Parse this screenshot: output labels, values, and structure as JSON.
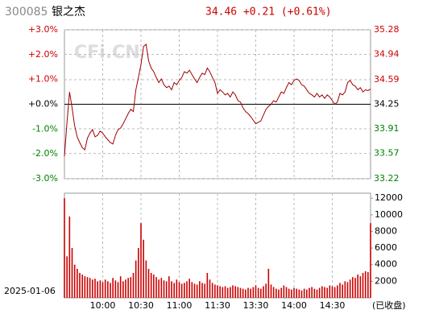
{
  "header": {
    "code": "300085",
    "name": "银之杰",
    "quote": "34.46 +0.21 (+0.61%)"
  },
  "watermark": "CFi.CN",
  "date": "2025-01-06",
  "status": "(已收盘)",
  "chart_data": [
    {
      "type": "line",
      "x": [
        0,
        2,
        4,
        6,
        8,
        10,
        12,
        14,
        16,
        18,
        20,
        22,
        24,
        26,
        28,
        30,
        32,
        34,
        36,
        38,
        40,
        42,
        44,
        46,
        48,
        50,
        52,
        54,
        56,
        58,
        60,
        62,
        64,
        66,
        68,
        70,
        72,
        74,
        76,
        78,
        80,
        82,
        84,
        86,
        88,
        90,
        92,
        94,
        96,
        98,
        100,
        102,
        104,
        106,
        108,
        110,
        112,
        114,
        116,
        118,
        120,
        122,
        124,
        126,
        128,
        130,
        132,
        134,
        136,
        138,
        140,
        142,
        144,
        146,
        148,
        150,
        152,
        154,
        156,
        158,
        160,
        162,
        164,
        166,
        168,
        170,
        172,
        174,
        176,
        178,
        180,
        182,
        184,
        186,
        188,
        190,
        192,
        194,
        196,
        198,
        200,
        202,
        204,
        206,
        208,
        210,
        212,
        214,
        216,
        218,
        220,
        222,
        224,
        226,
        228,
        230,
        232,
        234,
        236,
        238,
        240
      ],
      "values": [
        33.53,
        34.0,
        34.42,
        34.2,
        33.95,
        33.8,
        33.72,
        33.65,
        33.62,
        33.78,
        33.85,
        33.9,
        33.8,
        33.82,
        33.88,
        33.85,
        33.8,
        33.76,
        33.72,
        33.7,
        33.82,
        33.9,
        33.92,
        33.98,
        34.05,
        34.12,
        34.18,
        34.15,
        34.45,
        34.62,
        34.8,
        35.05,
        35.08,
        34.85,
        34.75,
        34.7,
        34.62,
        34.55,
        34.6,
        34.52,
        34.48,
        34.5,
        34.45,
        34.55,
        34.52,
        34.58,
        34.62,
        34.7,
        34.68,
        34.72,
        34.66,
        34.6,
        34.55,
        34.62,
        34.68,
        34.66,
        34.75,
        34.7,
        34.62,
        34.55,
        34.4,
        34.45,
        34.42,
        34.38,
        34.4,
        34.35,
        34.42,
        34.38,
        34.3,
        34.28,
        34.2,
        34.15,
        34.12,
        34.08,
        34.03,
        33.98,
        34.0,
        34.02,
        34.1,
        34.18,
        34.22,
        34.25,
        34.3,
        34.28,
        34.35,
        34.42,
        34.4,
        34.48,
        34.55,
        34.52,
        34.58,
        34.6,
        34.58,
        34.52,
        34.5,
        34.45,
        34.4,
        34.38,
        34.35,
        34.4,
        34.35,
        34.38,
        34.33,
        34.38,
        34.35,
        34.3,
        34.25,
        34.28,
        34.4,
        34.38,
        34.42,
        34.55,
        34.58,
        34.52,
        34.5,
        34.45,
        34.48,
        34.42,
        34.45,
        34.44,
        34.46
      ],
      "color": "#a00000",
      "xlim": [
        0,
        240
      ],
      "ylim": [
        33.22,
        35.28
      ],
      "yticks": [
        35.28,
        34.94,
        34.59,
        34.25,
        33.91,
        33.57,
        33.22
      ],
      "y2lim": [
        -3,
        3
      ],
      "y2ticks": [
        {
          "value": 3,
          "label": "+3.0%"
        },
        {
          "value": 2,
          "label": "+2.0%"
        },
        {
          "value": 1,
          "label": "+1.0%"
        },
        {
          "value": 0,
          "label": "+0.0%"
        },
        {
          "value": -1,
          "label": "-1.0%"
        },
        {
          "value": -2,
          "label": "-2.0%"
        },
        {
          "value": -3,
          "label": "-3.0%"
        }
      ],
      "grid": true
    },
    {
      "type": "bar",
      "x": [
        0,
        2,
        4,
        6,
        8,
        10,
        12,
        14,
        16,
        18,
        20,
        22,
        24,
        26,
        28,
        30,
        32,
        34,
        36,
        38,
        40,
        42,
        44,
        46,
        48,
        50,
        52,
        54,
        56,
        58,
        60,
        62,
        64,
        66,
        68,
        70,
        72,
        74,
        76,
        78,
        80,
        82,
        84,
        86,
        88,
        90,
        92,
        94,
        96,
        98,
        100,
        102,
        104,
        106,
        108,
        110,
        112,
        114,
        116,
        118,
        120,
        122,
        124,
        126,
        128,
        130,
        132,
        134,
        136,
        138,
        140,
        142,
        144,
        146,
        148,
        150,
        152,
        154,
        156,
        158,
        160,
        162,
        164,
        166,
        168,
        170,
        172,
        174,
        176,
        178,
        180,
        182,
        184,
        186,
        188,
        190,
        192,
        194,
        196,
        198,
        200,
        202,
        204,
        206,
        208,
        210,
        212,
        214,
        216,
        218,
        220,
        222,
        224,
        226,
        228,
        230,
        232,
        234,
        236,
        238,
        240
      ],
      "values": [
        12000,
        5000,
        9800,
        6000,
        4000,
        3500,
        3000,
        2800,
        2600,
        2500,
        2400,
        2200,
        2300,
        2000,
        2100,
        1900,
        2200,
        2000,
        1800,
        2400,
        2100,
        1900,
        2600,
        2000,
        2200,
        2400,
        2500,
        3000,
        4500,
        6000,
        9000,
        7000,
        4500,
        3500,
        3000,
        2800,
        2500,
        2200,
        2400,
        2100,
        2000,
        2600,
        2000,
        1800,
        2200,
        1900,
        1700,
        1800,
        2000,
        2300,
        1900,
        1700,
        1600,
        2000,
        1800,
        1700,
        3000,
        2200,
        1800,
        1600,
        1500,
        1400,
        1300,
        1400,
        1200,
        1300,
        1500,
        1400,
        1300,
        1200,
        1100,
        1000,
        1200,
        1100,
        1300,
        1500,
        1200,
        1100,
        1400,
        1700,
        3500,
        1600,
        1300,
        1100,
        1000,
        1200,
        1500,
        1300,
        1100,
        1000,
        1200,
        1100,
        1000,
        900,
        1100,
        1000,
        1200,
        1300,
        1100,
        1000,
        1200,
        1400,
        1300,
        1200,
        1500,
        1400,
        1300,
        1500,
        1800,
        1600,
        2000,
        1900,
        2200,
        2500,
        2400,
        2800,
        2600,
        3000,
        3200,
        3100,
        9000
      ],
      "color": "#cc0000",
      "xlim": [
        0,
        240
      ],
      "xticks": [
        {
          "value": 30,
          "label": "10:00"
        },
        {
          "value": 60,
          "label": "10:30"
        },
        {
          "value": 90,
          "label": "11:00"
        },
        {
          "value": 120,
          "label": "11:30"
        },
        {
          "value": 150,
          "label": "13:30"
        },
        {
          "value": 180,
          "label": "14:00"
        },
        {
          "value": 210,
          "label": "14:30"
        }
      ],
      "ylim": [
        0,
        12600
      ],
      "yticks": [
        12000,
        10000,
        8000,
        6000,
        4000,
        2000
      ],
      "grid": true
    }
  ]
}
